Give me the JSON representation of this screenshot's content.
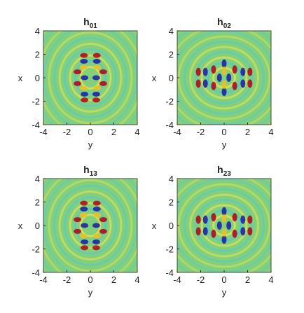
{
  "chart_data": [
    {
      "type": "heatmap",
      "title": "h",
      "title_subscript": "01",
      "xlabel": "y",
      "ylabel": "x",
      "xlim": [
        -4,
        4
      ],
      "ylim": [
        -4,
        4
      ],
      "xticks": [
        -4,
        -2,
        0,
        2,
        4
      ],
      "yticks": [
        -4,
        -2,
        0,
        2,
        4
      ],
      "pattern": "vertical"
    },
    {
      "type": "heatmap",
      "title": "h",
      "title_subscript": "02",
      "xlabel": "y",
      "ylabel": "x",
      "xlim": [
        -4,
        4
      ],
      "ylim": [
        -4,
        4
      ],
      "xticks": [
        -4,
        -2,
        0,
        2,
        4
      ],
      "yticks": [
        -4,
        -2,
        0,
        2,
        4
      ],
      "pattern": "horizontal"
    },
    {
      "type": "heatmap",
      "title": "h",
      "title_subscript": "13",
      "xlabel": "y",
      "ylabel": "x",
      "xlim": [
        -4,
        4
      ],
      "ylim": [
        -4,
        4
      ],
      "xticks": [
        -4,
        -2,
        0,
        2,
        4
      ],
      "yticks": [
        -4,
        -2,
        0,
        2,
        4
      ],
      "pattern": "vertical"
    },
    {
      "type": "heatmap",
      "title": "h",
      "title_subscript": "23",
      "xlabel": "y",
      "ylabel": "x",
      "xlim": [
        -4,
        4
      ],
      "ylim": [
        -4,
        4
      ],
      "xticks": [
        -4,
        -2,
        0,
        2,
        4
      ],
      "yticks": [
        -4,
        -2,
        0,
        2,
        4
      ],
      "pattern": "horizontal"
    }
  ]
}
